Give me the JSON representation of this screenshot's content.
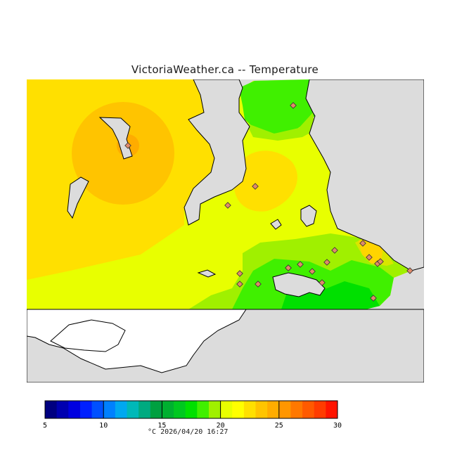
{
  "title": "VictoriaWeather.ca -- Temperature",
  "colorbar": {
    "min": 5,
    "max": 30,
    "tick_labels": [
      "5",
      "10",
      "15",
      "20",
      "25",
      "30"
    ],
    "unit": "°C",
    "colors": [
      "#000080",
      "#0000b0",
      "#0000e0",
      "#0020ff",
      "#0050ff",
      "#0080ff",
      "#00a8f0",
      "#00b8b8",
      "#00aa80",
      "#00a040",
      "#00b030",
      "#00c820",
      "#00e000",
      "#40f000",
      "#a0f000",
      "#e8ff00",
      "#ffff00",
      "#ffe000",
      "#ffc400",
      "#ffac00",
      "#ff9600",
      "#ff7800",
      "#ff5a00",
      "#ff3c00",
      "#ff1400"
    ]
  },
  "timestamp": "2026/04/20 16:27",
  "colors": {
    "land": "#dcdcdc",
    "unmapped_water": "#ffffff",
    "coastline": "#000000",
    "station_fill": "#e08a6a"
  },
  "map": {
    "stations": [
      {
        "id": "s1"
      },
      {
        "id": "s2"
      },
      {
        "id": "s3"
      },
      {
        "id": "s4"
      },
      {
        "id": "s5"
      },
      {
        "id": "s6"
      },
      {
        "id": "s7"
      },
      {
        "id": "s8"
      },
      {
        "id": "s9"
      },
      {
        "id": "s10"
      },
      {
        "id": "s11"
      },
      {
        "id": "s12"
      },
      {
        "id": "s13"
      },
      {
        "id": "s14"
      },
      {
        "id": "s15"
      },
      {
        "id": "s16"
      },
      {
        "id": "s17"
      },
      {
        "id": "s18"
      },
      {
        "id": "s19"
      },
      {
        "id": "s20"
      }
    ]
  }
}
